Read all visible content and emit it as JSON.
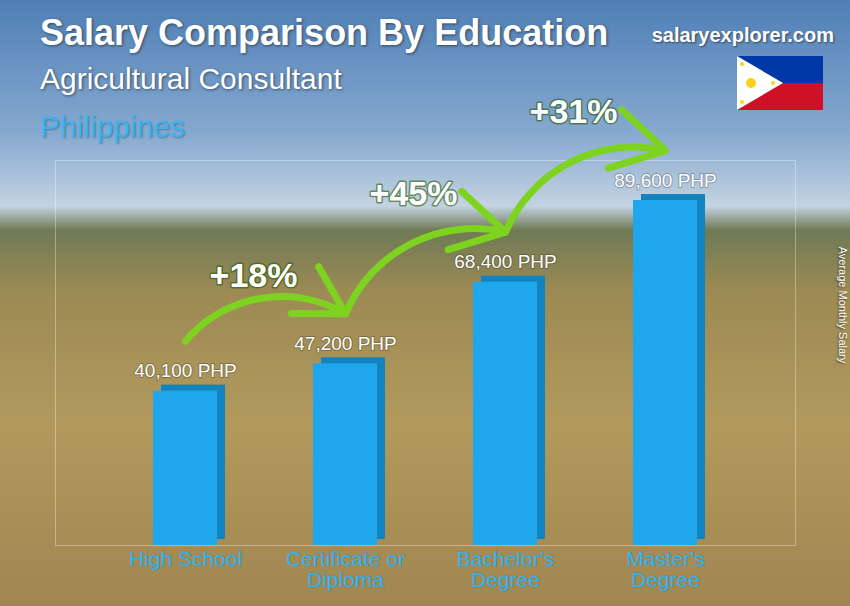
{
  "chart_data": {
    "type": "bar",
    "title": "Salary Comparison By Education",
    "subtitle": "Agricultural Consultant",
    "country": "Philippines",
    "source": "salaryexplorer.com",
    "y_label": "Average Monthly Salary",
    "categories": [
      "High School",
      "Certificate or\nDiploma",
      "Bachelor's\nDegree",
      "Master's\nDegree"
    ],
    "values": [
      40100,
      47200,
      68400,
      89600
    ],
    "value_labels": [
      "40,100 PHP",
      "47,200 PHP",
      "68,400 PHP",
      "89,600 PHP"
    ],
    "changes": [
      18,
      45,
      31
    ],
    "change_labels": [
      "+18%",
      "+45%",
      "+31%"
    ],
    "color": "#1ea7ec",
    "ylim": [
      0,
      100000
    ],
    "yticks": [],
    "tick_labels": "x",
    "data_labels": true,
    "grid": false
  }
}
